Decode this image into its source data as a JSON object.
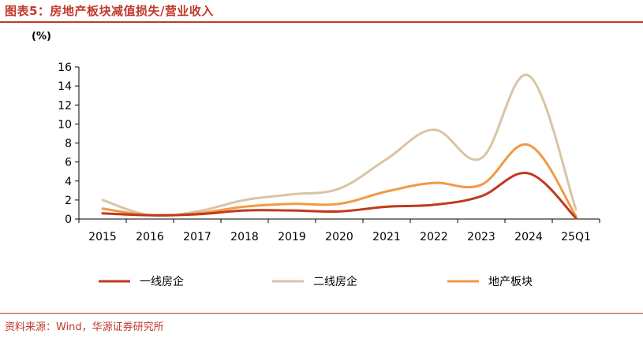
{
  "header": {
    "title": "图表5：房地产板块减值损失/营业收入"
  },
  "footer": {
    "source": "资料来源：Wind，华源证券研究所"
  },
  "chart_data": {
    "type": "line",
    "ylabel": "(%)",
    "ylim": [
      0,
      16
    ],
    "yticks": [
      0,
      2,
      4,
      6,
      8,
      10,
      12,
      14,
      16
    ],
    "categories": [
      "2015",
      "2016",
      "2017",
      "2018",
      "2019",
      "2020",
      "2021",
      "2022",
      "2023",
      "2024",
      "25Q1"
    ],
    "legend_position": "bottom",
    "series": [
      {
        "name": "一线房企",
        "color": "#c0391b",
        "values": [
          0.6,
          0.4,
          0.5,
          0.9,
          0.9,
          0.8,
          1.3,
          1.5,
          2.4,
          4.8,
          0.1
        ]
      },
      {
        "name": "二线房企",
        "color": "#d9c4a6",
        "values": [
          2.0,
          0.4,
          0.8,
          2.0,
          2.6,
          3.2,
          6.3,
          9.4,
          6.4,
          15.1,
          1.0
        ]
      },
      {
        "name": "地产板块",
        "color": "#f09a45",
        "values": [
          1.1,
          0.4,
          0.6,
          1.3,
          1.6,
          1.6,
          2.9,
          3.8,
          3.6,
          7.8,
          0.3
        ]
      }
    ]
  }
}
